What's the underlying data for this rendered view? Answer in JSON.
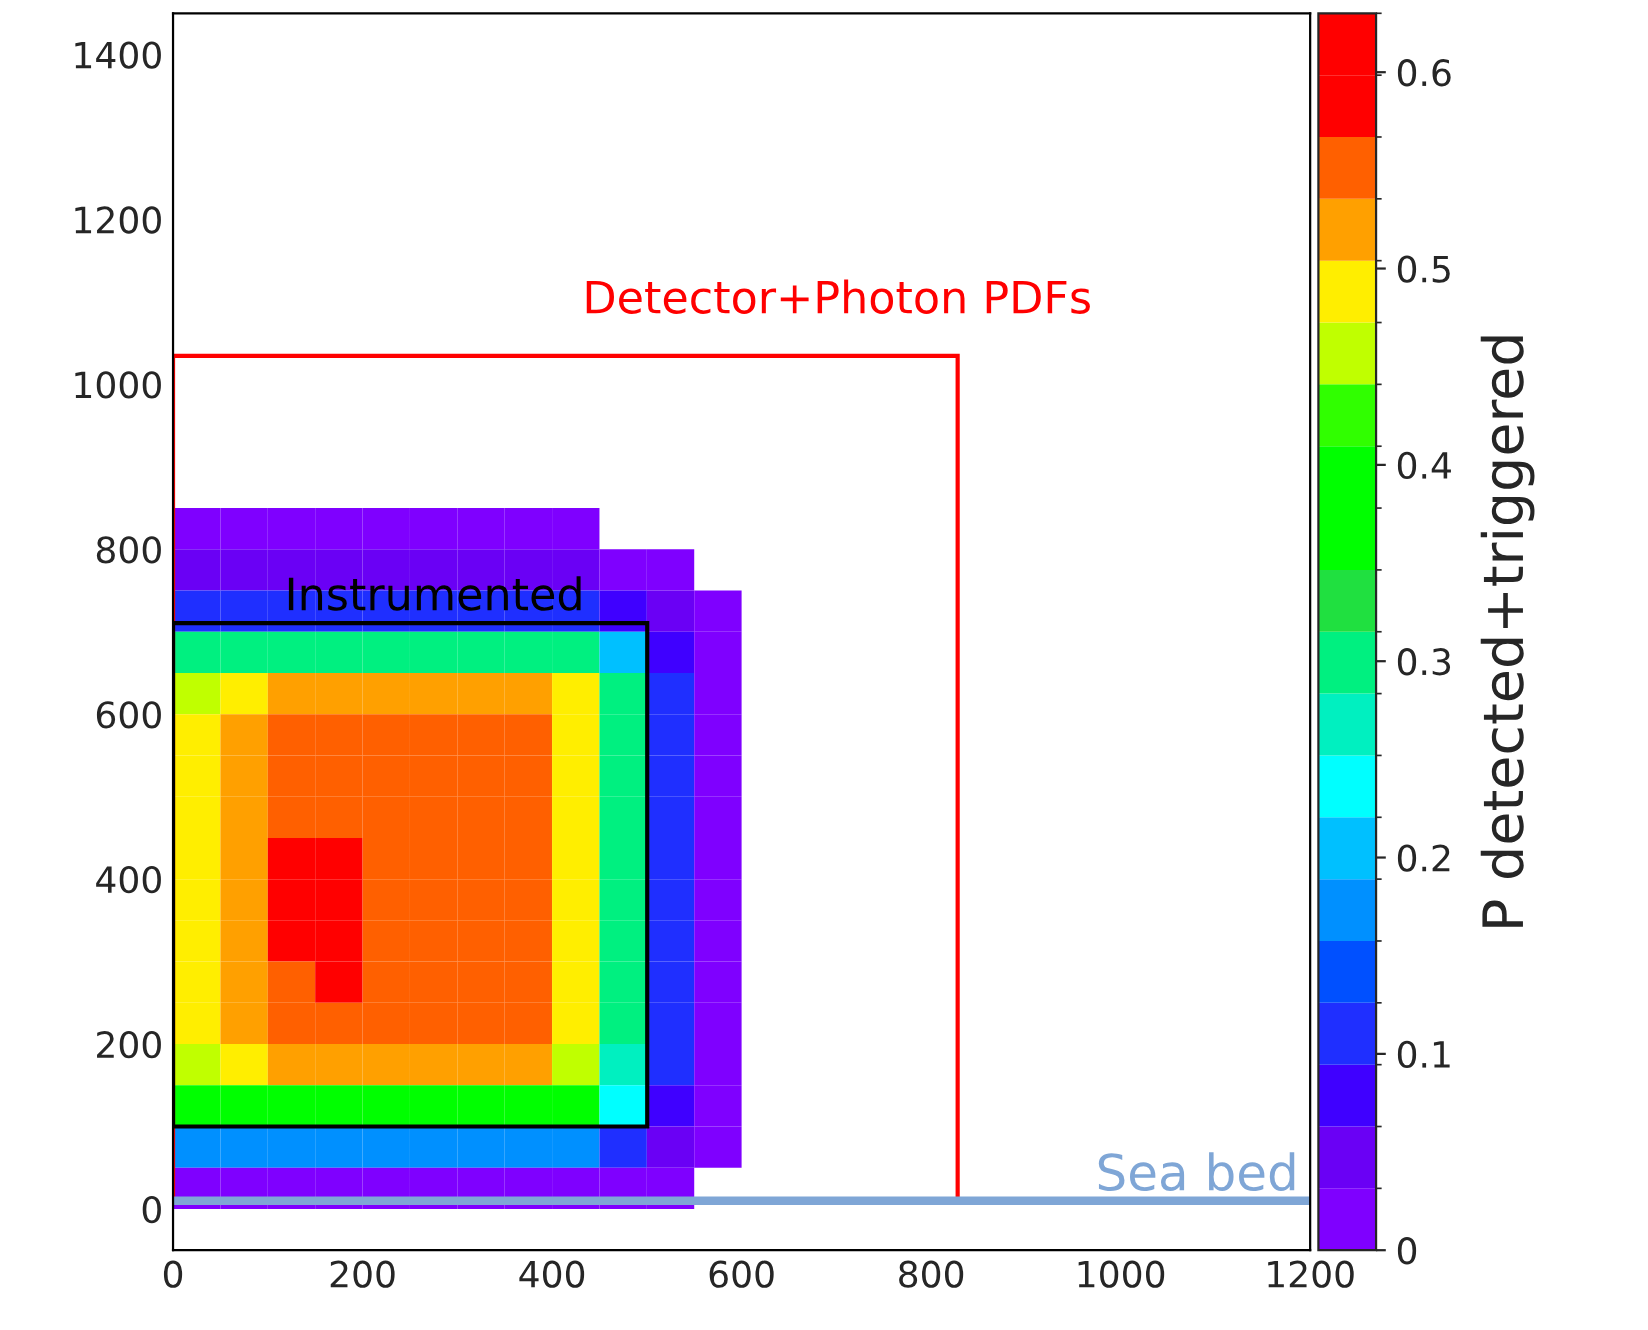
{
  "chart_data": {
    "type": "heatmap",
    "x": [
      25,
      75,
      125,
      175,
      225,
      275,
      325,
      375,
      425,
      475,
      525,
      575
    ],
    "y": [
      825,
      775,
      725,
      675,
      625,
      575,
      525,
      475,
      425,
      375,
      325,
      275,
      225,
      175,
      125,
      75,
      25
    ],
    "cells": [
      [
        0.02,
        0.02,
        0.02,
        0.02,
        0.02,
        0.02,
        0.02,
        0.02,
        0.02,
        null,
        null,
        null
      ],
      [
        0.04,
        0.04,
        0.04,
        0.04,
        0.04,
        0.04,
        0.04,
        0.04,
        0.04,
        0.03,
        0.02,
        null
      ],
      [
        0.12,
        0.12,
        0.12,
        0.12,
        0.12,
        0.12,
        0.12,
        0.12,
        0.1,
        0.08,
        0.04,
        0.02
      ],
      [
        0.3,
        0.3,
        0.3,
        0.3,
        0.3,
        0.3,
        0.3,
        0.3,
        0.3,
        0.2,
        0.08,
        0.02
      ],
      [
        0.45,
        0.5,
        0.52,
        0.52,
        0.52,
        0.52,
        0.52,
        0.52,
        0.5,
        0.3,
        0.1,
        0.02
      ],
      [
        0.48,
        0.52,
        0.55,
        0.55,
        0.55,
        0.55,
        0.55,
        0.55,
        0.48,
        0.3,
        0.1,
        0.02
      ],
      [
        0.48,
        0.52,
        0.55,
        0.55,
        0.55,
        0.55,
        0.55,
        0.55,
        0.48,
        0.3,
        0.1,
        0.02
      ],
      [
        0.48,
        0.52,
        0.55,
        0.55,
        0.55,
        0.55,
        0.55,
        0.55,
        0.48,
        0.3,
        0.1,
        0.02
      ],
      [
        0.48,
        0.52,
        0.6,
        0.6,
        0.55,
        0.55,
        0.55,
        0.55,
        0.48,
        0.3,
        0.1,
        0.02
      ],
      [
        0.48,
        0.52,
        0.6,
        0.6,
        0.55,
        0.55,
        0.55,
        0.55,
        0.48,
        0.3,
        0.1,
        0.02
      ],
      [
        0.48,
        0.52,
        0.6,
        0.6,
        0.55,
        0.55,
        0.55,
        0.55,
        0.48,
        0.3,
        0.1,
        0.02
      ],
      [
        0.48,
        0.52,
        0.55,
        0.6,
        0.55,
        0.55,
        0.55,
        0.55,
        0.48,
        0.3,
        0.1,
        0.02
      ],
      [
        0.48,
        0.52,
        0.55,
        0.55,
        0.55,
        0.55,
        0.55,
        0.55,
        0.48,
        0.3,
        0.1,
        0.02
      ],
      [
        0.46,
        0.5,
        0.52,
        0.52,
        0.52,
        0.52,
        0.52,
        0.52,
        0.46,
        0.28,
        0.1,
        0.02
      ],
      [
        0.4,
        0.4,
        0.4,
        0.4,
        0.4,
        0.4,
        0.4,
        0.4,
        0.38,
        0.25,
        0.08,
        0.02
      ],
      [
        0.18,
        0.18,
        0.18,
        0.18,
        0.18,
        0.18,
        0.18,
        0.18,
        0.16,
        0.12,
        0.05,
        0.02
      ],
      [
        0.03,
        0.03,
        0.03,
        0.03,
        0.03,
        0.03,
        0.03,
        0.03,
        0.03,
        0.03,
        0.02,
        null
      ]
    ],
    "clim": [
      0,
      0.63
    ],
    "cticks": [
      0,
      0.1,
      0.2,
      0.3,
      0.4,
      0.5,
      0.6
    ],
    "clabel": "P detected+triggered",
    "xlim": [
      0,
      1200
    ],
    "ylim": [
      -50,
      1450
    ],
    "xticks": [
      0,
      200,
      400,
      600,
      800,
      1000,
      1200
    ],
    "yticks": [
      0,
      200,
      400,
      600,
      800,
      1000,
      1200,
      1400
    ],
    "ref_lines": [
      {
        "axis": "y",
        "value": 10,
        "label": "Sea bed",
        "color": "#7fa6d6"
      }
    ],
    "annotations": [
      "Detector+Photon PDFs",
      "Instrumented"
    ],
    "grid": false
  }
}
